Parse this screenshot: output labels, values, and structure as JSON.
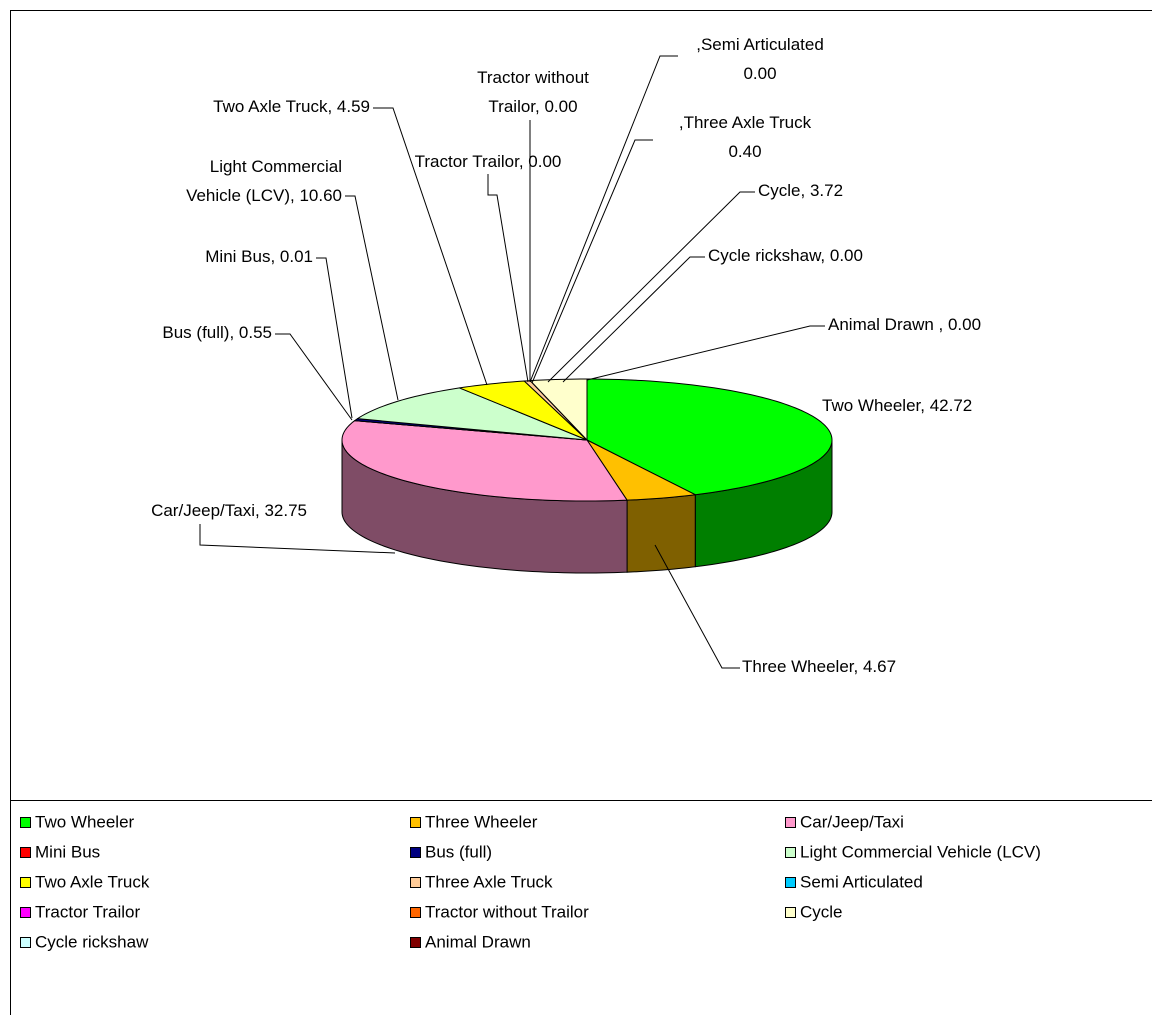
{
  "chart_data": {
    "type": "pie3d",
    "categories": [
      "Two Wheeler",
      "Three Wheeler",
      "Car/Jeep/Taxi",
      "Mini Bus",
      "Bus (full)",
      "Light Commercial Vehicle (LCV)",
      "Two Axle Truck",
      "Three Axle Truck",
      "Semi Articulated",
      "Tractor Trailor",
      "Tractor without Trailor",
      "Cycle",
      "Cycle rickshaw",
      "Animal Drawn"
    ],
    "values": [
      42.72,
      4.67,
      32.75,
      0.01,
      0.55,
      10.6,
      4.59,
      0.4,
      0,
      0,
      0,
      3.72,
      0,
      0
    ],
    "value_labels": [
      "Two Wheeler, 42.72",
      "Three Wheeler, 4.67",
      "Car/Jeep/Taxi, 32.75",
      "Mini Bus, 0.01",
      "Bus (full), 0.55",
      "Light Commercial\nVehicle (LCV), 10.60",
      "Two Axle Truck, 4.59",
      ",Three Axle Truck\n0.40",
      ",Semi Articulated\n0.00",
      "Tractor Trailor, 0.00",
      "Tractor without\nTrailor, 0.00",
      "Cycle, 3.72",
      "Cycle rickshaw, 0.00",
      "Animal Drawn , 0.00"
    ],
    "colors": [
      "#00ff00",
      "#ffc000",
      "#ff99cc",
      "#ff0000",
      "#000080",
      "#ccffcc",
      "#ffff00",
      "#ffcc99",
      "#00ccff",
      "#ff00ff",
      "#ff6600",
      "#ffffcc",
      "#ccffff",
      "#800000"
    ],
    "legend": "bottom"
  }
}
